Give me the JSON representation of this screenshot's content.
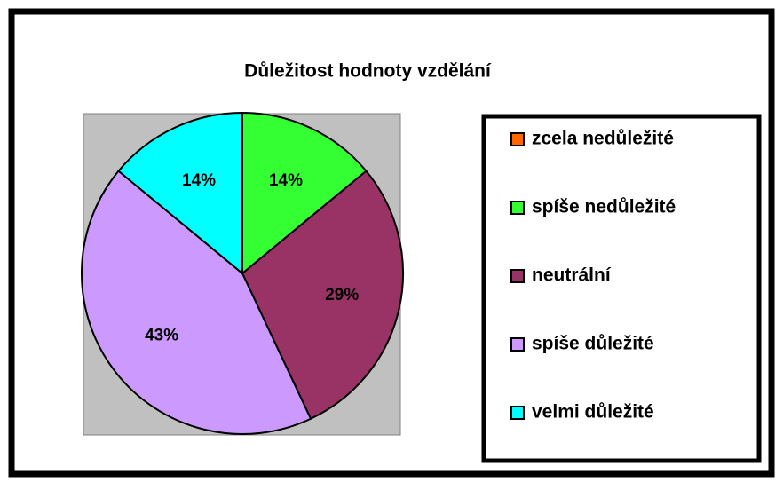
{
  "chart_data": {
    "type": "pie",
    "title": "Důležitost hodnoty vzdělání",
    "categories": [
      "zcela nedůležité",
      "spíše nedůležité",
      "neutrální",
      "spíše důležité",
      "velmi důležité"
    ],
    "values": [
      0,
      14,
      29,
      43,
      14
    ],
    "value_labels": [
      "0%",
      "14%",
      "29%",
      "43%",
      "14%"
    ],
    "colors": [
      "#ff6600",
      "#33ff33",
      "#993366",
      "#cc99ff",
      "#00ffff"
    ],
    "legend": "right"
  }
}
